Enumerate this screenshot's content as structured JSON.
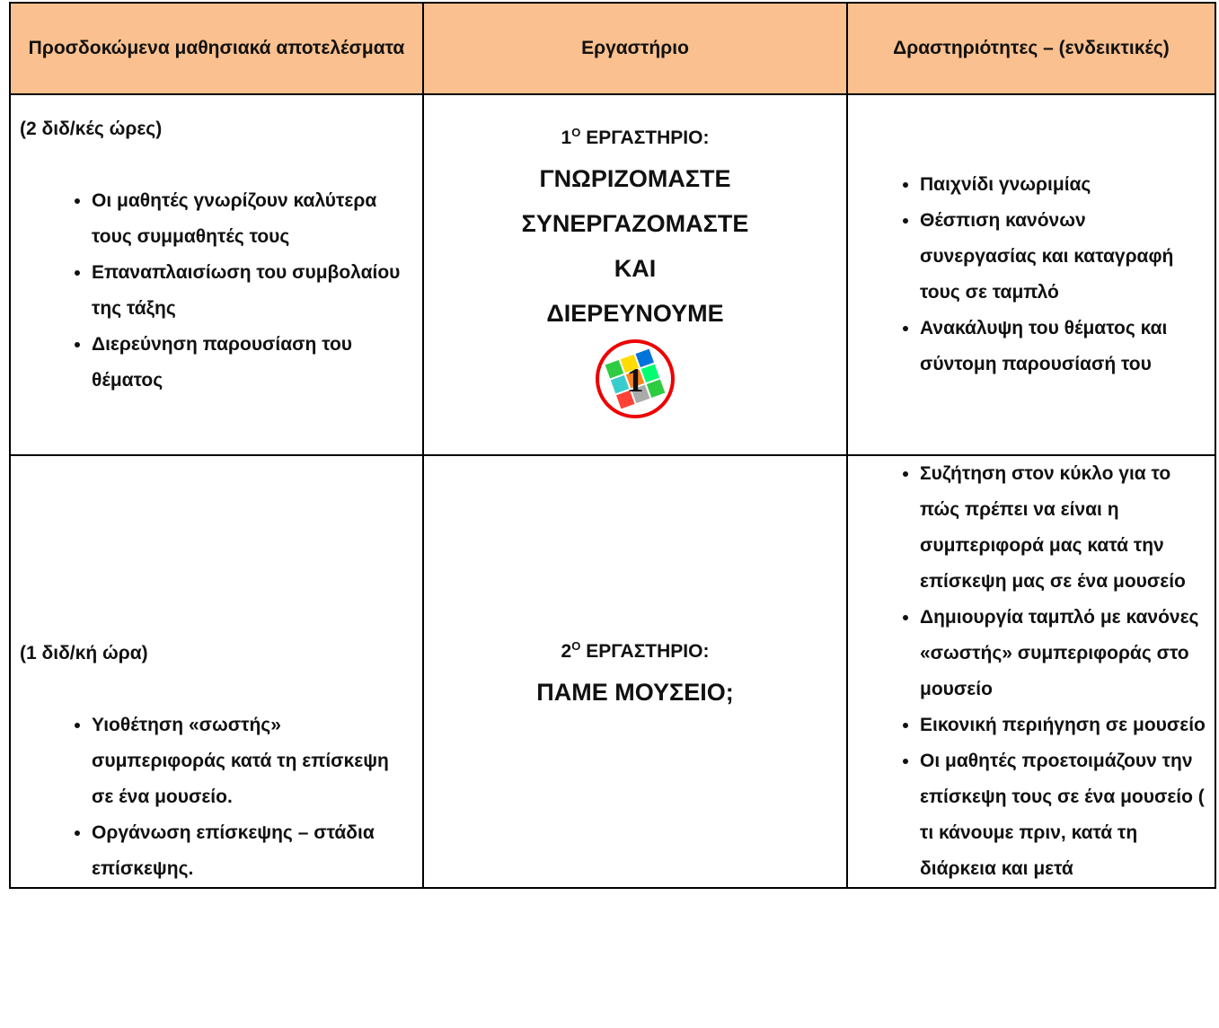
{
  "table": {
    "header": [
      "Προσδοκώμενα μαθησιακά αποτελέσματα",
      "Εργαστήριο",
      "Δραστηριότητες – (ενδεικτικές)"
    ],
    "rows": [
      {
        "hours": "(2 διδ/κές ώρες)",
        "outcomes": [
          "Οι μαθητές γνωρίζουν καλύτερα τους συμμαθητές τους",
          "Επαναπλαισίωση του συμβολαίου της τάξης",
          "Διερεύνηση παρουσίαση του θέματος"
        ],
        "workshop": {
          "number": "1",
          "superscript": "Ο",
          "label": "ΕΡΓΑΣΤΗΡΙΟ:",
          "title": [
            "ΓΝΩΡΙΖΟΜΑΣΤΕ",
            "ΣΥΝΕΡΓΑΖΟΜΑΣΤΕ",
            "ΚΑΙ",
            "ΔΙΕΡΕΥΝΟΥΜΕ"
          ],
          "icon_label": "1"
        },
        "activities": [
          "Παιχνίδι γνωριμίας",
          "Θέσπιση κανόνων συνεργασίας και καταγραφή τους σε ταμπλό",
          "Ανακάλυψη του θέματος και σύντομη παρουσίασή του"
        ]
      },
      {
        "hours": "(1  διδ/κή ώρα)",
        "outcomes": [
          "Υιοθέτηση  «σωστής» συμπεριφοράς κατά τη επίσκεψη σε ένα μουσείο.",
          "Οργάνωση επίσκεψης – στάδια επίσκεψης."
        ],
        "workshop": {
          "number": "2",
          "superscript": "Ο",
          "label": "ΕΡΓΑΣΤΗΡΙΟ:",
          "title": [
            "ΠΑΜΕ ΜΟΥΣΕΙΟ;"
          ]
        },
        "activities": [
          "Συζήτηση στον κύκλο για το πώς πρέπει να είναι η συμπεριφορά μας κατά την επίσκεψη μας σε ένα μουσείο",
          "Δημιουργία ταμπλό με κανόνες «σωστής» συμπεριφοράς στο μουσείο",
          "Εικονική περιήγηση σε μουσείο",
          "Οι μαθητές προετοιμάζουν την επίσκεψη τους σε ένα μουσείο ( τι κάνουμε πριν, κατά τη διάρκεια και μετά"
        ]
      }
    ]
  }
}
